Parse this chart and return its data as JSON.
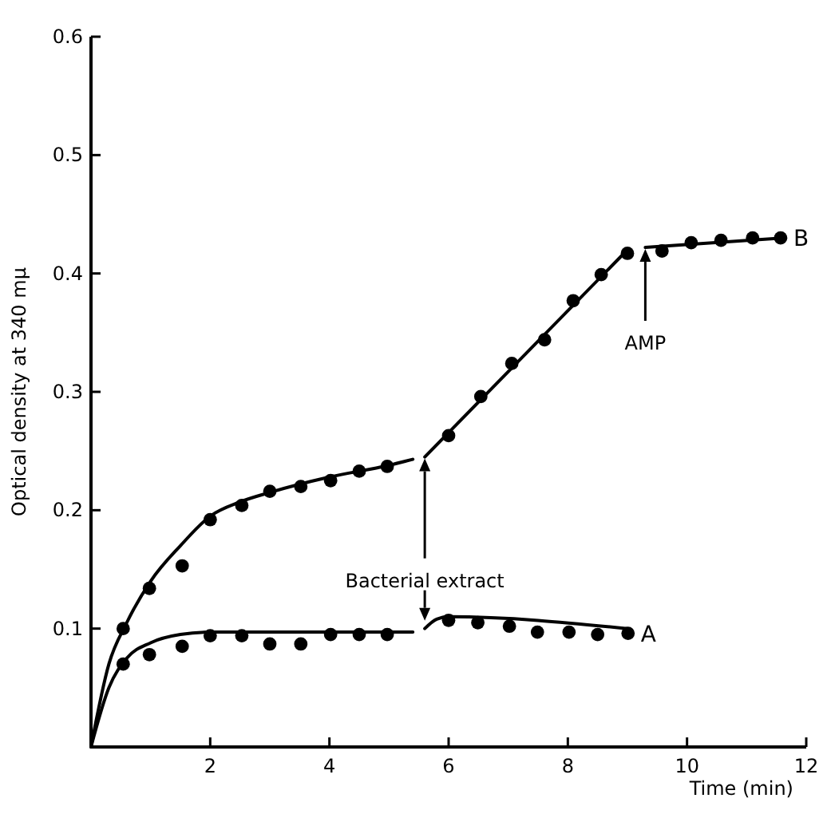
{
  "chart_data": {
    "type": "scatter",
    "xlabel": "Time (min)",
    "ylabel": "Optical density at 340 mμ",
    "xlim": [
      0,
      12
    ],
    "xticks": [
      2,
      4,
      6,
      8,
      10,
      12
    ],
    "ylim": [
      0,
      0.6
    ],
    "yticks": [
      0.1,
      0.2,
      0.3,
      0.4,
      0.5,
      0.6
    ],
    "grid": false,
    "marker": "circle",
    "series": [
      {
        "name": "B",
        "color": "#000000",
        "x": [
          0.54,
          0.98,
          1.53,
          2.0,
          2.53,
          3.0,
          3.52,
          4.02,
          4.5,
          4.97,
          6.0,
          6.54,
          7.06,
          7.61,
          8.09,
          8.56,
          9.0,
          9.58,
          10.07,
          10.57,
          11.1,
          11.57
        ],
        "values": [
          0.1,
          0.134,
          0.153,
          0.192,
          0.204,
          0.216,
          0.22,
          0.225,
          0.233,
          0.237,
          0.263,
          0.296,
          0.324,
          0.344,
          0.377,
          0.399,
          0.417,
          0.419,
          0.426,
          0.428,
          0.43,
          0.43
        ]
      },
      {
        "name": "A",
        "color": "#000000",
        "x": [
          0.54,
          0.98,
          1.53,
          2.0,
          2.53,
          3.0,
          3.52,
          4.02,
          4.5,
          4.97,
          6.0,
          6.49,
          7.02,
          7.49,
          8.02,
          8.5,
          9.01
        ],
        "values": [
          0.07,
          0.078,
          0.085,
          0.094,
          0.094,
          0.087,
          0.087,
          0.095,
          0.095,
          0.095,
          0.107,
          0.105,
          0.102,
          0.097,
          0.097,
          0.095,
          0.096
        ]
      },
      {
        "color": "#000000",
        "type": "line",
        "marker": "none",
        "line_style": "solid",
        "x": [
          0,
          0.3,
          0.6,
          1,
          1.5,
          2,
          2.5,
          3,
          4,
          5,
          5.4,
          5.5,
          5.6,
          9,
          9.2,
          9.3,
          11.6
        ],
        "values": [
          0,
          0.07,
          0.105,
          0.14,
          0.17,
          0.195,
          0.207,
          0.215,
          0.228,
          0.238,
          0.243,
          null,
          0.245,
          0.42,
          null,
          0.422,
          0.43
        ]
      },
      {
        "color": "#000000",
        "type": "line",
        "marker": "none",
        "line_style": "solid",
        "x": [
          0,
          0.3,
          0.6,
          1,
          1.5,
          2,
          5.4,
          5.5,
          5.6,
          5.8,
          6,
          9
        ],
        "values": [
          0,
          0.05,
          0.075,
          0.088,
          0.095,
          0.097,
          0.097,
          null,
          0.1,
          0.108,
          0.11,
          0.1
        ]
      }
    ],
    "annotations": [
      {
        "text": "Bacterial extract",
        "x": 5.6,
        "y": 0.245
      },
      {
        "text": "AMP",
        "x": 9.3,
        "y": 0.422
      }
    ]
  }
}
